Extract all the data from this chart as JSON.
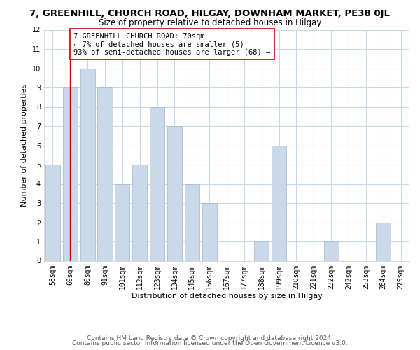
{
  "title": "7, GREENHILL, CHURCH ROAD, HILGAY, DOWNHAM MARKET, PE38 0JL",
  "subtitle": "Size of property relative to detached houses in Hilgay",
  "xlabel": "Distribution of detached houses by size in Hilgay",
  "ylabel": "Number of detached properties",
  "bar_labels": [
    "58sqm",
    "69sqm",
    "80sqm",
    "91sqm",
    "101sqm",
    "112sqm",
    "123sqm",
    "134sqm",
    "145sqm",
    "156sqm",
    "167sqm",
    "177sqm",
    "188sqm",
    "199sqm",
    "210sqm",
    "221sqm",
    "232sqm",
    "242sqm",
    "253sqm",
    "264sqm",
    "275sqm"
  ],
  "bar_values": [
    5,
    9,
    10,
    9,
    4,
    5,
    8,
    7,
    4,
    3,
    0,
    0,
    1,
    6,
    0,
    0,
    1,
    0,
    0,
    2,
    0
  ],
  "bar_color": "#c9d9ea",
  "bar_edge_color": "#a0b8cc",
  "annotation_box_text": "7 GREENHILL CHURCH ROAD: 70sqm\n← 7% of detached houses are smaller (5)\n93% of semi-detached houses are larger (68) →",
  "vline_x": 1.0,
  "ylim": [
    0,
    12
  ],
  "yticks": [
    0,
    1,
    2,
    3,
    4,
    5,
    6,
    7,
    8,
    9,
    10,
    11,
    12
  ],
  "footer_line1": "Contains HM Land Registry data © Crown copyright and database right 2024.",
  "footer_line2": "Contains public sector information licensed under the Open Government Licence v3.0.",
  "grid_color": "#c8d8e8",
  "vline_color": "#cc0000",
  "annotation_box_edgecolor": "#cc0000",
  "bg_color": "#f0f4f8",
  "title_fontsize": 9.5,
  "subtitle_fontsize": 8.5,
  "axis_label_fontsize": 8,
  "tick_fontsize": 7,
  "annotation_fontsize": 7.5,
  "footer_fontsize": 6.5
}
